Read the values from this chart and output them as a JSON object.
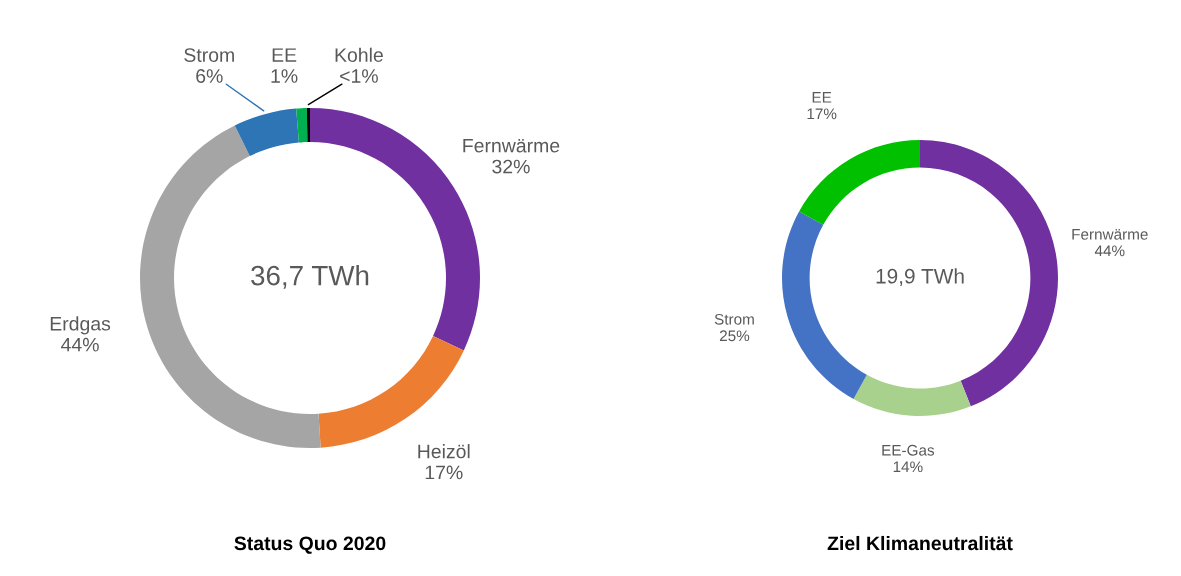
{
  "chart_data": [
    {
      "type": "donut",
      "title": "Status Quo 2020",
      "annotations": [
        "36,7 TWh"
      ],
      "categories": [
        "Fernwärme",
        "Heizöl",
        "Erdgas",
        "Strom",
        "EE",
        "Kohle"
      ],
      "values": [
        32,
        17,
        43.7,
        6,
        1,
        0.3
      ],
      "value_labels": [
        "32%",
        "17%",
        "44%",
        "6%",
        "1%",
        "<1%"
      ],
      "colors": [
        "#7030a0",
        "#ed7d31",
        "#a5a5a5",
        "#2e75b6",
        "#00b050",
        "#000000"
      ]
    },
    {
      "type": "donut",
      "title": "Ziel Klimaneutralität",
      "annotations": [
        "19,9 TWh"
      ],
      "categories": [
        "Fernwärme",
        "EE-Gas",
        "Strom",
        "EE"
      ],
      "values": [
        44,
        14,
        25,
        17
      ],
      "value_labels": [
        "44%",
        "14%",
        "25%",
        "17%"
      ],
      "colors": [
        "#7030a0",
        "#a9d18e",
        "#4472c4",
        "#00c000"
      ]
    }
  ]
}
